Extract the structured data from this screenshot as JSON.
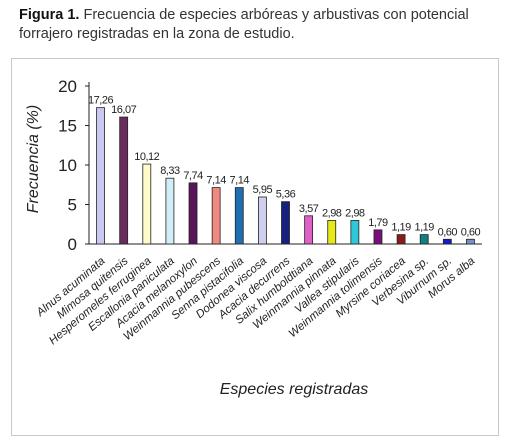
{
  "caption": {
    "label": "Figura 1.",
    "text": "Frecuencia de especies arbóreas y arbustivas con potencial forrajero registradas en la zona de estudio."
  },
  "chart_data": {
    "type": "bar",
    "title": "",
    "xlabel": "Especies registradas",
    "ylabel": "Frecuencia (%)",
    "ylim": [
      0,
      20
    ],
    "yticks": [
      0,
      5,
      10,
      15,
      20
    ],
    "grid": false,
    "categories": [
      "Alnus acuminata",
      "Mimosa quitensis",
      "Hesperomeles ferruginea",
      "Escallonia paniculata",
      "Acacia melanoxylon",
      "Weinmannia pubescens",
      "Senna pistacifolia",
      "Dodonea viscosa",
      "Acacia decurrens",
      "Salix humboldtiana",
      "Weinmannia pinnata",
      "Vallea stipularis",
      "Weinmannia tolimensis",
      "Myrsine coriacea",
      "Verbesina sp.",
      "Viburnum sp.",
      "Morus alba"
    ],
    "values": [
      17.26,
      16.07,
      10.12,
      8.33,
      7.74,
      7.14,
      7.14,
      5.95,
      5.36,
      3.57,
      2.98,
      2.98,
      1.79,
      1.19,
      1.19,
      0.6,
      0.6
    ],
    "value_labels": [
      "17,26",
      "16,07",
      "10,12",
      "8,33",
      "7,74",
      "7,14",
      "7,14",
      "5,95",
      "5,36",
      "3,57",
      "2,98",
      "2,98",
      "1,79",
      "1,19",
      "1,19",
      "0,60",
      "0,60"
    ],
    "colors": [
      "#c8c8f2",
      "#6b2a5e",
      "#fffbc8",
      "#d0eef6",
      "#5a1459",
      "#f08a80",
      "#1f6fb0",
      "#cfcff0",
      "#17207e",
      "#e060c8",
      "#e8e818",
      "#2ec8d8",
      "#780e78",
      "#8a1a20",
      "#0f7f82",
      "#1818d0",
      "#7890cc"
    ]
  }
}
